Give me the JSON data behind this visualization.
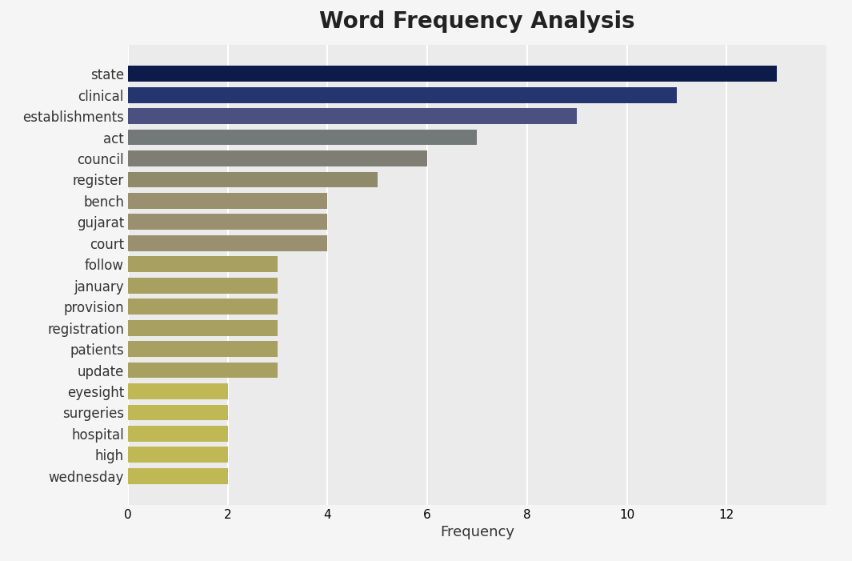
{
  "title": "Word Frequency Analysis",
  "categories": [
    "state",
    "clinical",
    "establishments",
    "act",
    "council",
    "register",
    "bench",
    "gujarat",
    "court",
    "follow",
    "january",
    "provision",
    "registration",
    "patients",
    "update",
    "eyesight",
    "surgeries",
    "hospital",
    "high",
    "wednesday"
  ],
  "values": [
    13,
    11,
    9,
    7,
    6,
    5,
    4,
    4,
    4,
    3,
    3,
    3,
    3,
    3,
    3,
    2,
    2,
    2,
    2,
    2
  ],
  "bar_colors": [
    "#0d1b4b",
    "#253570",
    "#4a5180",
    "#737878",
    "#7e7e74",
    "#8e8a6a",
    "#9a9070",
    "#9a9070",
    "#9a9070",
    "#a8a060",
    "#a8a060",
    "#a8a060",
    "#a8a060",
    "#a8a060",
    "#a8a060",
    "#c0b855",
    "#c0b855",
    "#c0b855",
    "#c0b855",
    "#c0b855"
  ],
  "xlabel": "Frequency",
  "xlim": [
    0,
    14
  ],
  "background_color": "#f5f5f5",
  "plot_bg_color": "#ebebeb",
  "title_fontsize": 20,
  "label_fontsize": 12,
  "xlabel_fontsize": 13,
  "tick_fontsize": 11,
  "grid_color": "#ffffff",
  "bar_height": 0.75
}
